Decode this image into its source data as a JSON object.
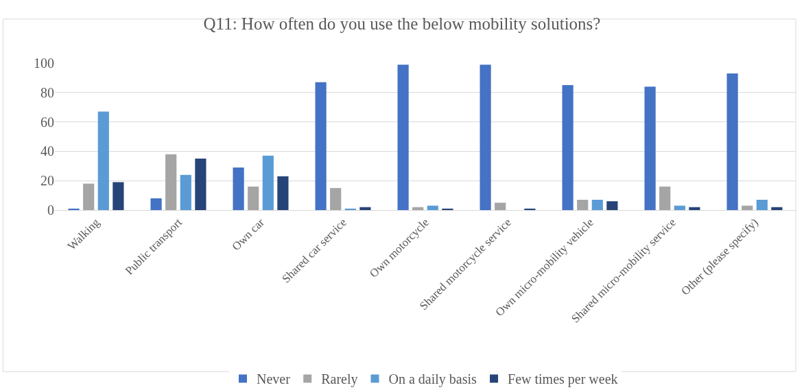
{
  "chart_data": {
    "type": "bar",
    "title": "Q11: How often do you use the below mobility solutions?",
    "categories": [
      "Walking",
      "Public transport",
      "Own car",
      "Shared car service",
      "Own motorcycle",
      "Shared motorcycle service",
      "Own micro-mobility vehicle",
      "Shared micro-mobility service",
      "Other (please specify)"
    ],
    "series": [
      {
        "name": "Never",
        "color": "#4472c4",
        "values": [
          1,
          8,
          29,
          87,
          99,
          99,
          85,
          84,
          93
        ]
      },
      {
        "name": "Rarely",
        "color": "#a5a5a5",
        "values": [
          18,
          38,
          16,
          15,
          2,
          5,
          7,
          16,
          3
        ]
      },
      {
        "name": "On a daily basis",
        "color": "#5b9bd5",
        "values": [
          67,
          24,
          37,
          1,
          3,
          0,
          7,
          3,
          7
        ]
      },
      {
        "name": "Few times per week",
        "color": "#264478",
        "values": [
          19,
          35,
          23,
          2,
          1,
          1,
          6,
          2,
          2
        ]
      }
    ],
    "ylim": [
      0,
      100
    ],
    "yticks": [
      0,
      20,
      40,
      60,
      80,
      100
    ],
    "grid": "y",
    "legend": "bottom"
  }
}
